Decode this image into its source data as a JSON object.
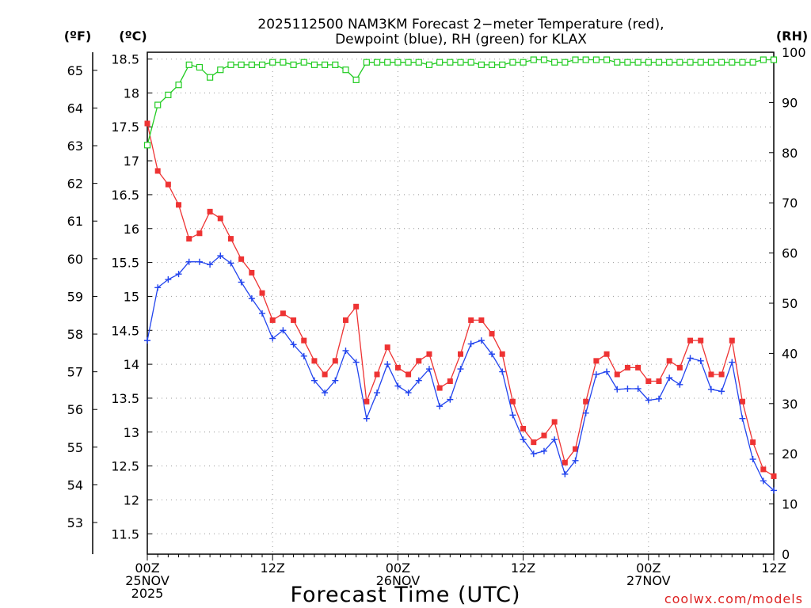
{
  "chart_data": {
    "type": "line",
    "title_line1": "2025112500 NAM3KM Forecast 2−meter Temperature (red),",
    "title_line2": "Dewpoint (blue), RH (green) for KLAX",
    "left_outer_unit": "(ºF)",
    "left_inner_unit": "(ºC)",
    "right_unit": "(RH)",
    "xlabel": "Forecast Time (UTC)",
    "credit": "coolwx.com/models",
    "x_range_hours": [
      0,
      60
    ],
    "c_range": [
      11.2,
      18.6
    ],
    "rh_range": [
      0,
      100
    ],
    "c_ticks": [
      "11.5",
      "12",
      "12.5",
      "13",
      "13.5",
      "14",
      "14.5",
      "15",
      "15.5",
      "16",
      "16.5",
      "17",
      "17.5",
      "18",
      "18.5"
    ],
    "f_ticks": [
      "53",
      "54",
      "55",
      "56",
      "57",
      "58",
      "59",
      "60",
      "61",
      "62",
      "63",
      "64",
      "65"
    ],
    "rh_ticks": [
      "0",
      "10",
      "20",
      "30",
      "40",
      "50",
      "60",
      "70",
      "80",
      "90",
      "100"
    ],
    "x_ticks": [
      {
        "hour": 0,
        "line1": "00Z",
        "line2": "25NOV",
        "line3": "2025"
      },
      {
        "hour": 12,
        "line1": "12Z",
        "line2": "",
        "line3": ""
      },
      {
        "hour": 24,
        "line1": "00Z",
        "line2": "26NOV",
        "line3": ""
      },
      {
        "hour": 36,
        "line1": "12Z",
        "line2": "",
        "line3": ""
      },
      {
        "hour": 48,
        "line1": "00Z",
        "line2": "27NOV",
        "line3": ""
      },
      {
        "hour": 60,
        "line1": "12Z",
        "line2": "",
        "line3": ""
      }
    ],
    "series": [
      {
        "name": "Temperature",
        "unit": "C",
        "color": "#ee3333",
        "marker": "square-filled",
        "values": [
          17.55,
          16.85,
          16.65,
          16.35,
          15.85,
          15.93,
          16.25,
          16.15,
          15.85,
          15.55,
          15.35,
          15.05,
          14.65,
          14.75,
          14.65,
          14.35,
          14.05,
          13.85,
          14.05,
          14.65,
          14.85,
          13.45,
          13.85,
          14.25,
          13.95,
          13.85,
          14.05,
          14.15,
          13.65,
          13.75,
          14.15,
          14.65,
          14.65,
          14.45,
          14.15,
          13.45,
          13.05,
          12.85,
          12.95,
          13.15,
          12.55,
          12.75,
          13.45,
          14.05,
          14.15,
          13.85,
          13.95,
          13.95,
          13.75,
          13.75,
          14.05,
          13.95,
          14.35,
          14.35,
          13.85,
          13.85,
          14.35,
          13.45,
          12.85,
          12.45,
          12.35
        ]
      },
      {
        "name": "Dewpoint",
        "unit": "C",
        "color": "#2244ee",
        "marker": "plus",
        "values": [
          14.35,
          15.13,
          15.25,
          15.33,
          15.51,
          15.51,
          15.47,
          15.6,
          15.49,
          15.21,
          14.97,
          14.75,
          14.38,
          14.5,
          14.29,
          14.12,
          13.76,
          13.58,
          13.76,
          14.2,
          14.03,
          13.2,
          13.58,
          14.0,
          13.68,
          13.58,
          13.76,
          13.93,
          13.38,
          13.48,
          13.93,
          14.3,
          14.35,
          14.15,
          13.89,
          13.25,
          12.89,
          12.68,
          12.72,
          12.89,
          12.38,
          12.58,
          13.28,
          13.85,
          13.89,
          13.63,
          13.64,
          13.64,
          13.47,
          13.49,
          13.8,
          13.7,
          14.09,
          14.05,
          13.63,
          13.6,
          14.03,
          13.2,
          12.6,
          12.28,
          12.14
        ]
      },
      {
        "name": "RH",
        "unit": "%",
        "color": "#22cc22",
        "marker": "square-open",
        "values": [
          81.5,
          89.5,
          91.5,
          93.5,
          97.5,
          97,
          95,
          96.5,
          97.5,
          97.5,
          97.5,
          97.5,
          98,
          98,
          97.5,
          98,
          97.5,
          97.5,
          97.5,
          96.5,
          94.5,
          98,
          98,
          98,
          98,
          98,
          98,
          97.5,
          98,
          98,
          98,
          98,
          97.5,
          97.5,
          97.5,
          98,
          98,
          98.5,
          98.5,
          98,
          98,
          98.5,
          98.5,
          98.5,
          98.5,
          98,
          98,
          98,
          98,
          98,
          98,
          98,
          98,
          98,
          98,
          98,
          98,
          98,
          98,
          98.5,
          98.5
        ]
      }
    ]
  }
}
